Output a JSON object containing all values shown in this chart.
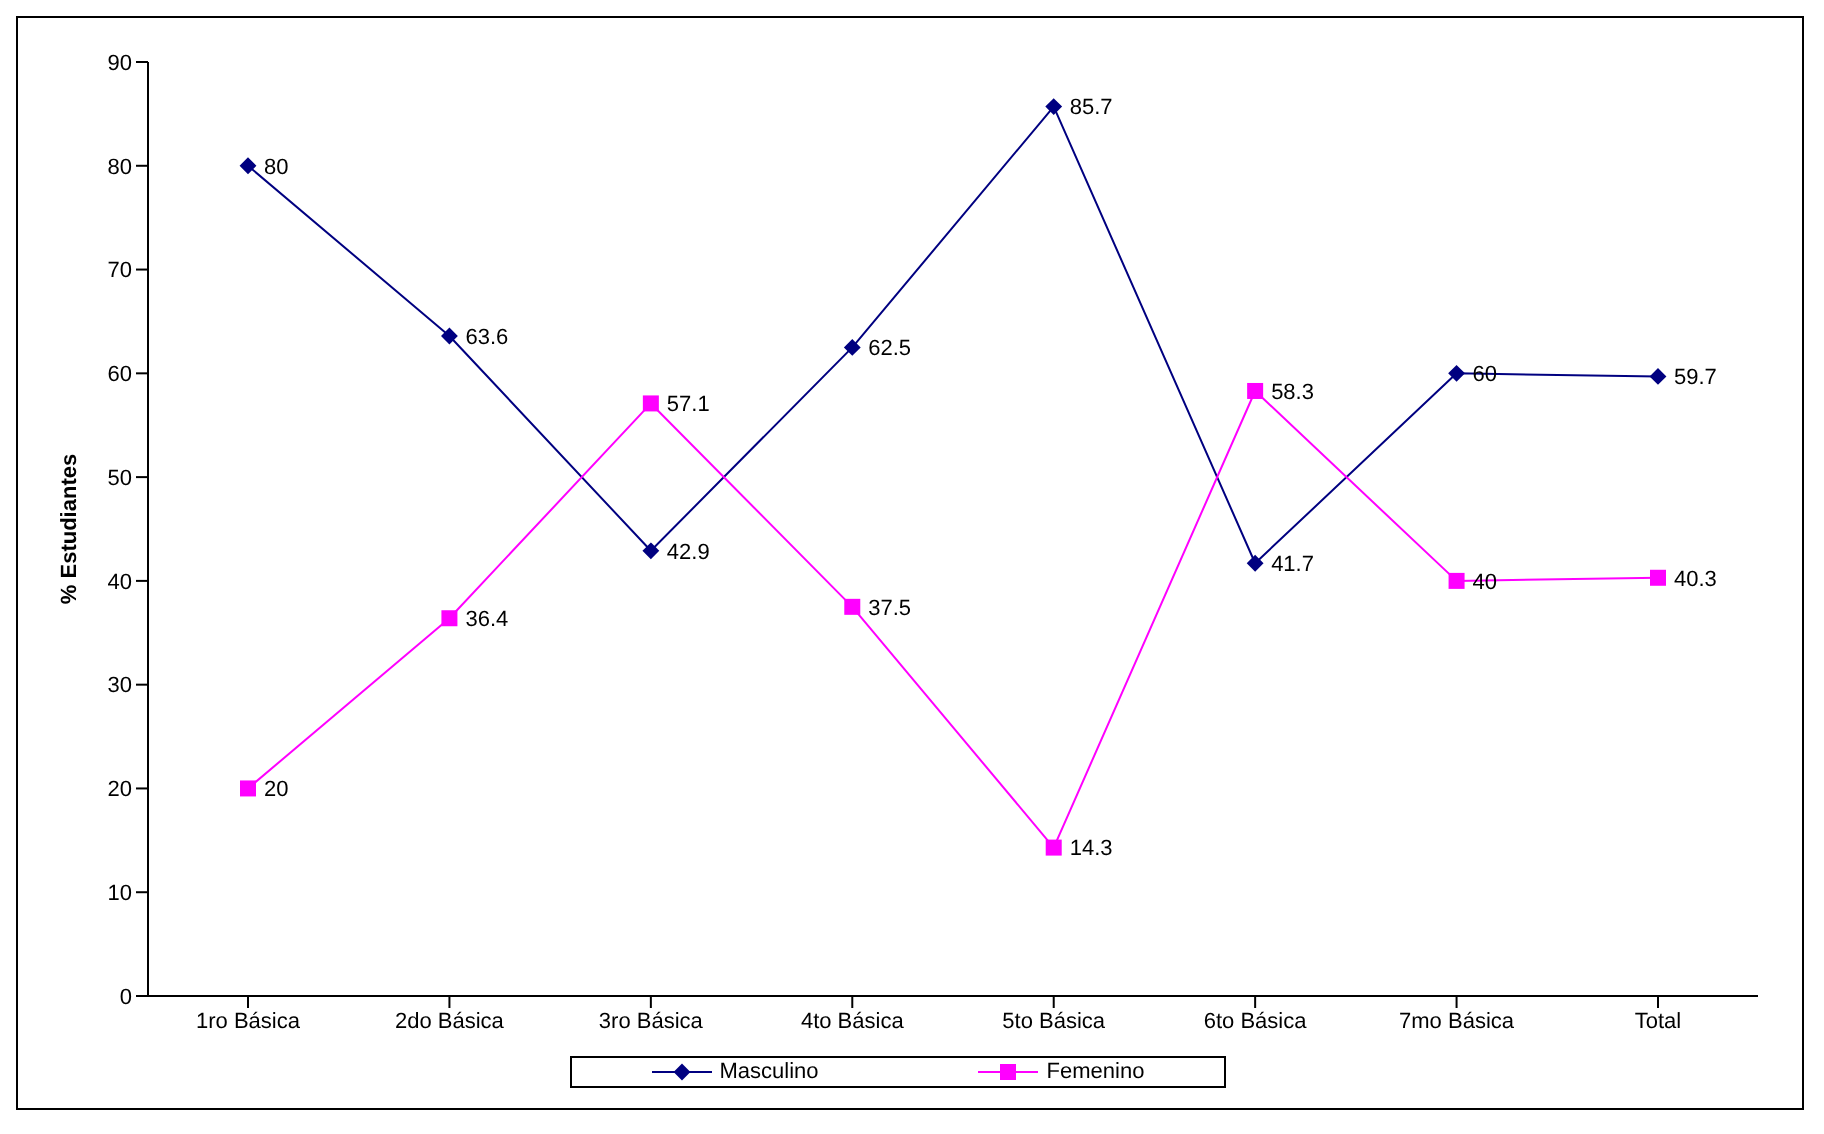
{
  "chart_data": {
    "type": "line",
    "ylabel": "% Estudiantes",
    "categories": [
      "1ro Básica",
      "2do Básica",
      "3ro Básica",
      "4to Básica",
      "5to Básica",
      "6to Básica",
      "7mo Básica",
      "Total"
    ],
    "series": [
      {
        "name": "Masculino",
        "color": "#000080",
        "marker": "diamond",
        "values": [
          80,
          63.6,
          42.9,
          62.5,
          85.7,
          41.7,
          60,
          59.7
        ]
      },
      {
        "name": "Femenino",
        "color": "#ff00ff",
        "marker": "square",
        "values": [
          20,
          36.4,
          57.1,
          37.5,
          14.3,
          58.3,
          40,
          40.3
        ]
      }
    ],
    "ylim": [
      0,
      90
    ],
    "yticks": [
      0,
      10,
      20,
      30,
      40,
      50,
      60,
      70,
      80,
      90
    ],
    "grid": false,
    "legend": "bottom",
    "data_labels": true
  }
}
